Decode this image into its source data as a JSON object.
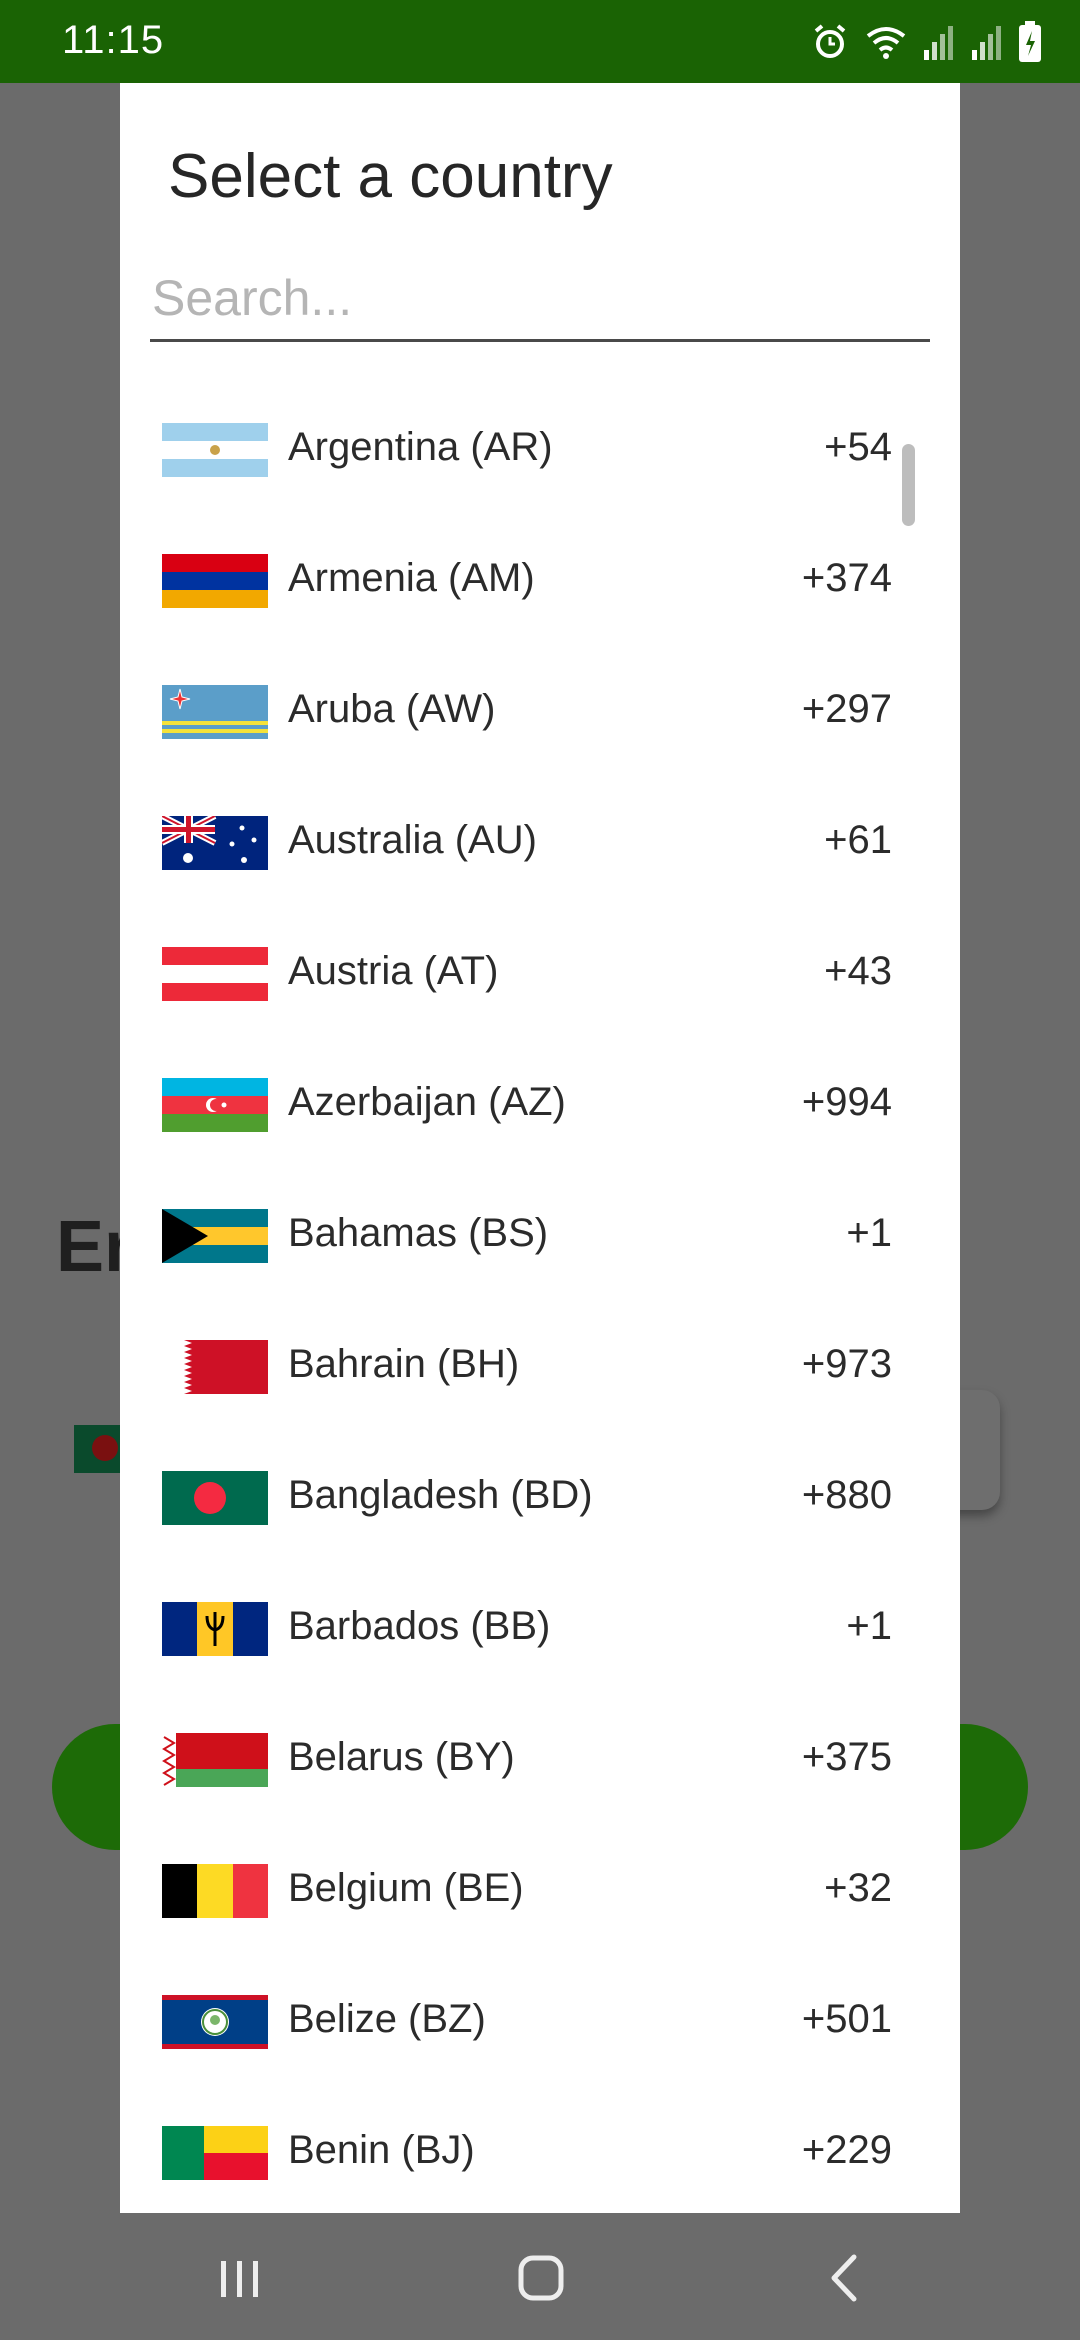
{
  "status_bar": {
    "time": "11:15"
  },
  "background": {
    "heading_fragment": "Er"
  },
  "dialog": {
    "title": "Select a country",
    "search_placeholder": "Search...",
    "countries": [
      {
        "name": "Argentina (AR)",
        "code": "+54",
        "flag": "argentina-flag"
      },
      {
        "name": "Armenia (AM)",
        "code": "+374",
        "flag": "armenia-flag"
      },
      {
        "name": "Aruba (AW)",
        "code": "+297",
        "flag": "aruba-flag"
      },
      {
        "name": "Australia (AU)",
        "code": "+61",
        "flag": "australia-flag"
      },
      {
        "name": "Austria (AT)",
        "code": "+43",
        "flag": "austria-flag"
      },
      {
        "name": "Azerbaijan (AZ)",
        "code": "+994",
        "flag": "azerbaijan-flag"
      },
      {
        "name": "Bahamas (BS)",
        "code": "+1",
        "flag": "bahamas-flag"
      },
      {
        "name": "Bahrain (BH)",
        "code": "+973",
        "flag": "bahrain-flag"
      },
      {
        "name": "Bangladesh (BD)",
        "code": "+880",
        "flag": "bangladesh-flag"
      },
      {
        "name": "Barbados (BB)",
        "code": "+1",
        "flag": "barbados-flag"
      },
      {
        "name": "Belarus (BY)",
        "code": "+375",
        "flag": "belarus-flag"
      },
      {
        "name": "Belgium (BE)",
        "code": "+32",
        "flag": "belgium-flag"
      },
      {
        "name": "Belize (BZ)",
        "code": "+501",
        "flag": "belize-flag"
      },
      {
        "name": "Benin (BJ)",
        "code": "+229",
        "flag": "benin-flag"
      }
    ]
  },
  "colors": {
    "status_bar": "#1a6304",
    "scrim": "#6b6b6b",
    "dialog_bg": "#ffffff",
    "text": "#2b2b2b"
  }
}
